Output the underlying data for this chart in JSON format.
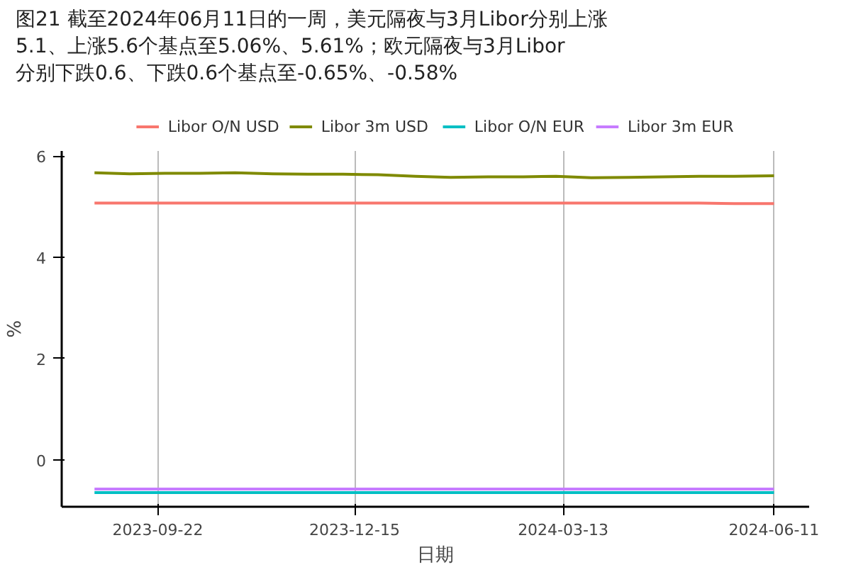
{
  "chart_data": {
    "type": "line",
    "title": "图21  截至2024年06月11日的一周，美元隔夜与3月Libor分别上涨\n5.1、上涨5.6个基点至5.06%、5.61%；欧元隔夜与3月Libor\n分别下跌0.6、下跌0.6个基点至-0.65%、-0.58%",
    "xlabel": "日期",
    "ylabel": "%",
    "x": [
      "2023-08-26",
      "2023-09-10",
      "2023-09-25",
      "2023-10-10",
      "2023-10-25",
      "2023-11-10",
      "2023-11-25",
      "2023-12-10",
      "2023-12-25",
      "2024-01-10",
      "2024-01-25",
      "2024-02-10",
      "2024-02-25",
      "2024-03-10",
      "2024-03-25",
      "2024-04-10",
      "2024-04-25",
      "2024-05-10",
      "2024-05-25",
      "2024-06-11"
    ],
    "series": [
      {
        "name": "Libor O/N USD",
        "color": "#f8766d",
        "values": [
          5.07,
          5.07,
          5.07,
          5.07,
          5.07,
          5.07,
          5.07,
          5.07,
          5.07,
          5.07,
          5.07,
          5.07,
          5.07,
          5.07,
          5.07,
          5.07,
          5.07,
          5.07,
          5.06,
          5.06
        ]
      },
      {
        "name": "Libor 3m USD",
        "color": "#7f8a00",
        "values": [
          5.67,
          5.65,
          5.66,
          5.66,
          5.67,
          5.65,
          5.64,
          5.64,
          5.63,
          5.6,
          5.58,
          5.59,
          5.59,
          5.6,
          5.57,
          5.58,
          5.59,
          5.6,
          5.6,
          5.61
        ]
      },
      {
        "name": "Libor O/N EUR",
        "color": "#00bfc4",
        "values": [
          -0.65,
          -0.65,
          -0.65,
          -0.65,
          -0.65,
          -0.65,
          -0.65,
          -0.65,
          -0.65,
          -0.65,
          -0.65,
          -0.65,
          -0.65,
          -0.65,
          -0.65,
          -0.65,
          -0.65,
          -0.65,
          -0.65,
          -0.65
        ]
      },
      {
        "name": "Libor 3m EUR",
        "color": "#c77cff",
        "values": [
          -0.58,
          -0.58,
          -0.58,
          -0.58,
          -0.58,
          -0.58,
          -0.58,
          -0.58,
          -0.58,
          -0.58,
          -0.58,
          -0.58,
          -0.58,
          -0.58,
          -0.58,
          -0.58,
          -0.58,
          -0.58,
          -0.58,
          -0.58
        ]
      }
    ],
    "xlim": [
      "2023-08-12",
      "2024-06-26"
    ],
    "xticks": [
      "2023-09-22",
      "2023-12-15",
      "2024-03-13",
      "2024-06-11"
    ],
    "ylim": [
      -0.93,
      6.1
    ],
    "yticks": [
      0,
      2,
      4,
      6
    ],
    "grid": "x",
    "legend": "top",
    "marker": "none",
    "line_style": "solid"
  }
}
